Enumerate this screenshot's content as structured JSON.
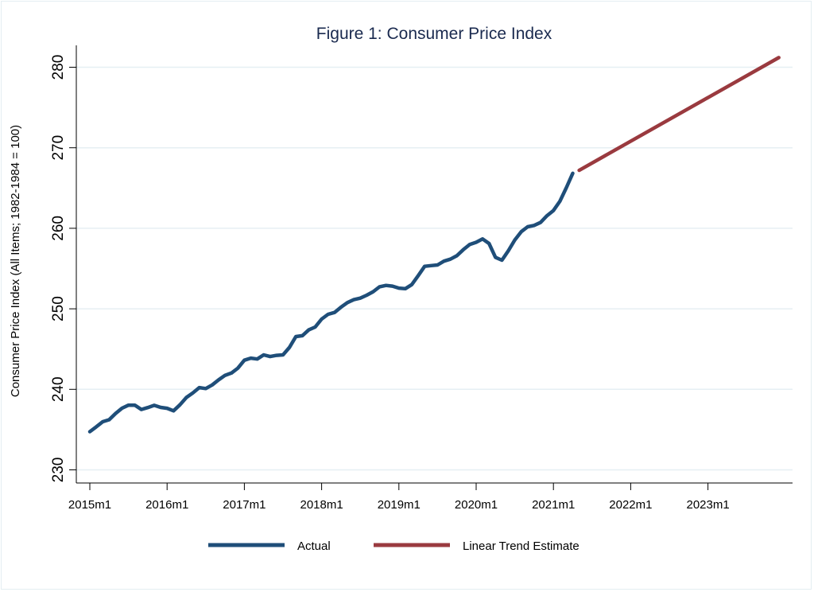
{
  "chart_data": {
    "type": "line",
    "title": "Figure 1: Consumer Price Index",
    "xlabel": "",
    "ylabel": "Consumer Price Index (All Items; 1982-1984 = 100)",
    "ylim": [
      230,
      280
    ],
    "yticks": [
      230,
      240,
      250,
      260,
      270,
      280
    ],
    "x_start": "2015m1",
    "x_end": "2023m12",
    "xticks": [
      "2015m1",
      "2016m1",
      "2017m1",
      "2018m1",
      "2019m1",
      "2020m1",
      "2021m1",
      "2022m1",
      "2023m1"
    ],
    "grid": true,
    "legend_position": "bottom",
    "series": [
      {
        "name": "Actual",
        "color": "#1f4e79",
        "start": "2015m1",
        "values": [
          234.747,
          235.342,
          235.976,
          236.222,
          237.001,
          237.657,
          238.034,
          238.033,
          237.498,
          237.733,
          238.017,
          237.761,
          237.652,
          237.336,
          238.08,
          238.992,
          239.557,
          240.222,
          240.101,
          240.545,
          241.176,
          241.741,
          242.026,
          242.637,
          243.618,
          243.872,
          243.766,
          244.274,
          244.069,
          244.218,
          244.28,
          245.205,
          246.551,
          246.657,
          247.378,
          247.736,
          248.721,
          249.318,
          249.545,
          250.195,
          250.77,
          251.135,
          251.322,
          251.691,
          252.122,
          252.733,
          252.905,
          252.818,
          252.565,
          252.496,
          253.0,
          254.122,
          255.276,
          255.361,
          255.444,
          255.923,
          256.164,
          256.586,
          257.346,
          257.988,
          258.263,
          258.678,
          258.115,
          256.389,
          256.037,
          257.212,
          258.543,
          259.58,
          260.19,
          260.352,
          260.721,
          261.564,
          262.2,
          263.346,
          265.028,
          266.832
        ]
      },
      {
        "name": "Linear Trend Estimate",
        "color": "#9a3a3f",
        "start": "2021m5",
        "end": "2023m12",
        "start_value": 267.2,
        "end_value": 281.2
      }
    ]
  }
}
